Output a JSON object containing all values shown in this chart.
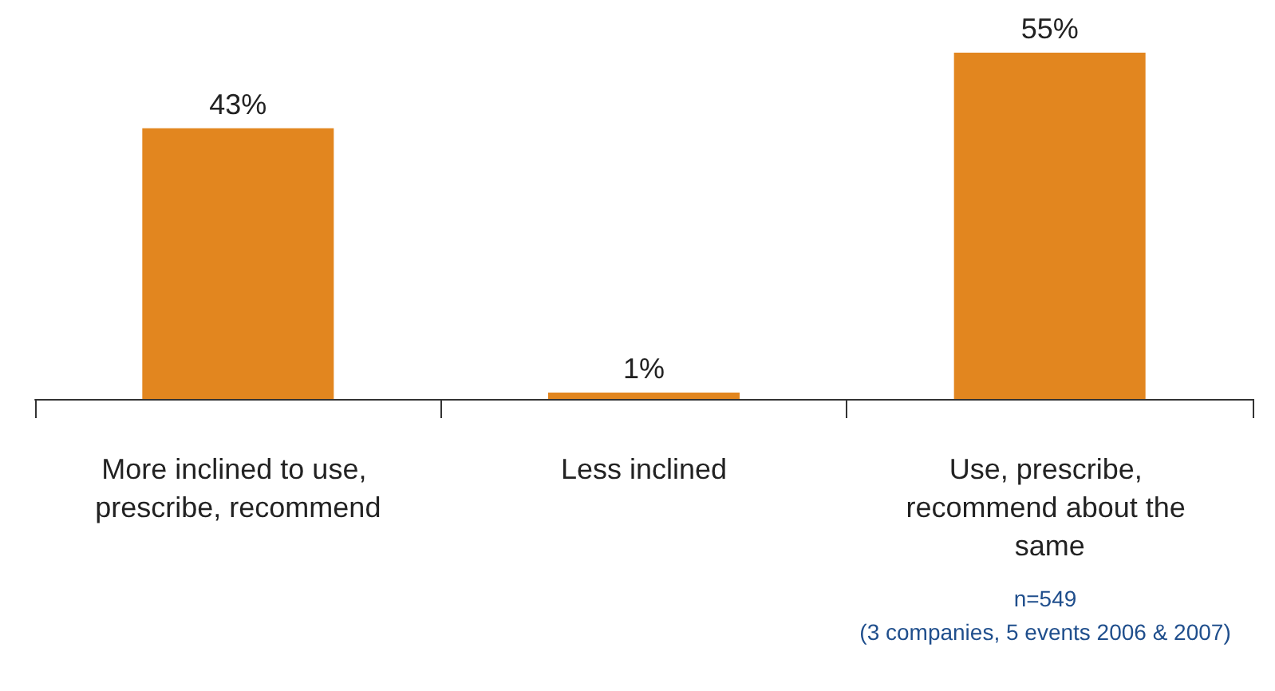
{
  "chart_data": {
    "type": "bar",
    "categories": [
      "More inclined to use, prescribe, recommend",
      "Less inclined",
      "Use, prescribe, recommend about the same"
    ],
    "values": [
      43,
      1,
      55
    ],
    "color": "#e2861f",
    "value_labels": [
      "43%",
      "1%",
      "55%"
    ],
    "annotations": [
      "n=549",
      "(3 companies, 5 events 2006 & 2007)"
    ]
  }
}
